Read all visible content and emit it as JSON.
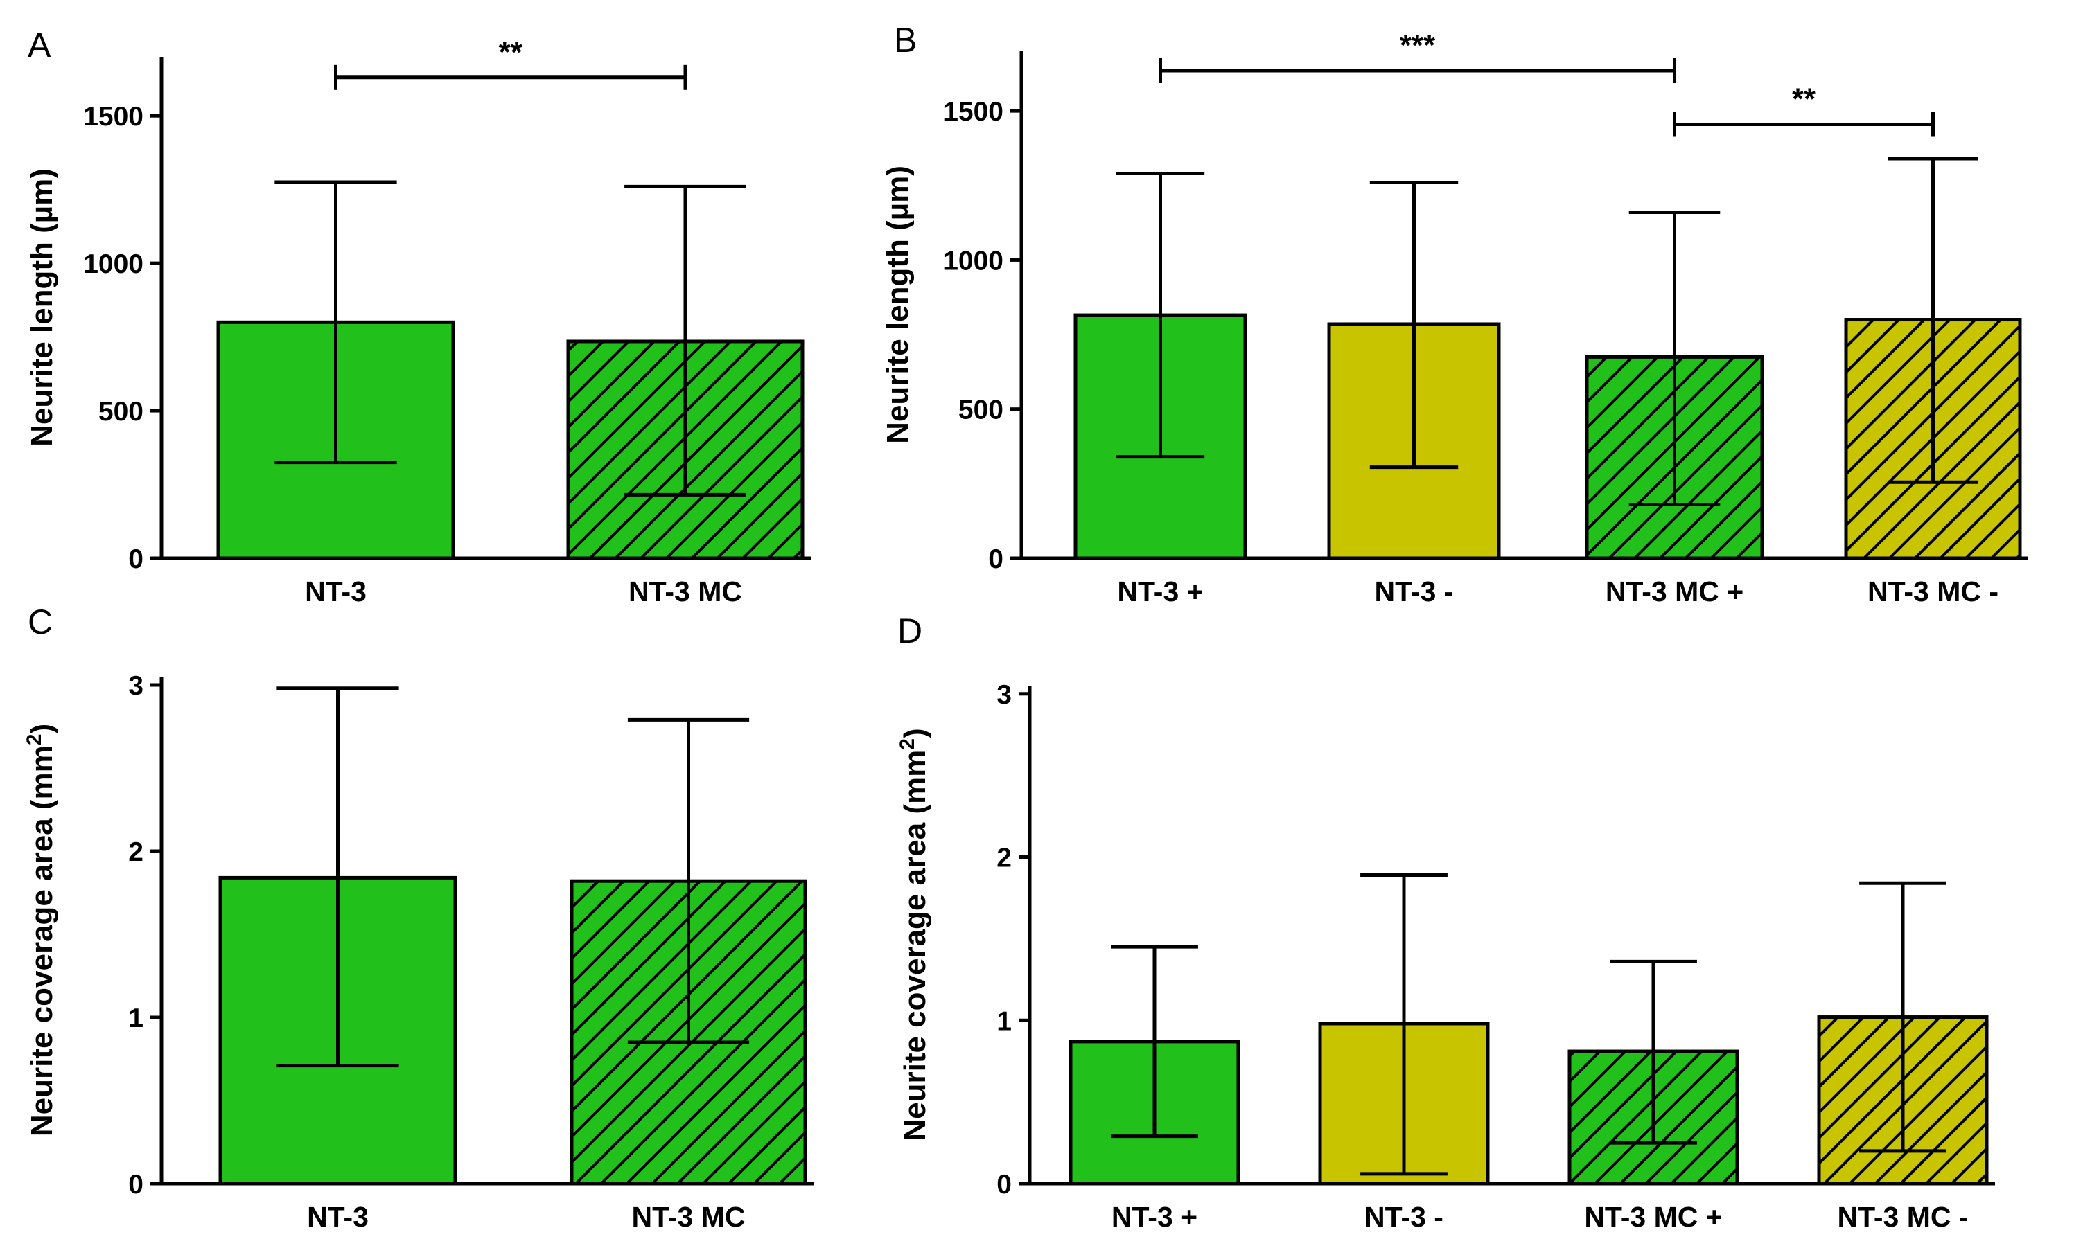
{
  "colors": {
    "green": "#22c01a",
    "olive": "#c9c400",
    "hatch": "#000000",
    "outline": "#000000"
  },
  "chart_data": [
    {
      "panel": "A",
      "type": "bar",
      "ylabel": "Neurite length (µm)",
      "ylim": [
        0,
        1700
      ],
      "yticks": [
        0,
        500,
        1000,
        1500
      ],
      "categories": [
        "NT-3",
        "NT-3 MC"
      ],
      "values": [
        800,
        735
      ],
      "error_upper": [
        1275,
        1260
      ],
      "error_lower": [
        325,
        215
      ],
      "fill": [
        "green",
        "green"
      ],
      "hatched": [
        false,
        true
      ],
      "significance": [
        {
          "from": 0,
          "to": 1,
          "label": "**",
          "level": 1630
        }
      ]
    },
    {
      "panel": "B",
      "type": "bar",
      "ylabel": "Neurite length (µm)",
      "ylim": [
        0,
        1700
      ],
      "yticks": [
        0,
        500,
        1000,
        1500
      ],
      "categories": [
        "NT-3 +",
        "NT-3 -",
        "NT-3 MC +",
        "NT-3 MC -"
      ],
      "values": [
        815,
        785,
        675,
        800
      ],
      "error_upper": [
        1290,
        1260,
        1160,
        1340
      ],
      "error_lower": [
        340,
        305,
        180,
        255
      ],
      "fill": [
        "green",
        "olive",
        "green",
        "olive"
      ],
      "hatched": [
        false,
        false,
        true,
        true
      ],
      "significance": [
        {
          "from": 0,
          "to": 2,
          "label": "***",
          "level": 1635
        },
        {
          "from": 2,
          "to": 3,
          "label": "**",
          "level": 1455
        }
      ]
    },
    {
      "panel": "C",
      "type": "bar",
      "ylabel": "Neurite coverage area (mm",
      "ylabel_sup": "2",
      "ylabel_suffix": ")",
      "ylim": [
        0,
        3.05
      ],
      "yticks": [
        0,
        1,
        2,
        3
      ],
      "categories": [
        "NT-3",
        "NT-3 MC"
      ],
      "values": [
        1.84,
        1.82
      ],
      "error_upper": [
        2.98,
        2.79
      ],
      "error_lower": [
        0.71,
        0.85
      ],
      "fill": [
        "green",
        "green"
      ],
      "hatched": [
        false,
        true
      ],
      "significance": []
    },
    {
      "panel": "D",
      "type": "bar",
      "ylabel": "Neurite coverage area (mm",
      "ylabel_sup": "2",
      "ylabel_suffix": ")",
      "ylim": [
        0,
        3.05
      ],
      "yticks": [
        0,
        1,
        2,
        3
      ],
      "categories": [
        "NT-3 +",
        "NT-3 -",
        "NT-3 MC +",
        "NT-3 MC -"
      ],
      "values": [
        0.87,
        0.98,
        0.81,
        1.02
      ],
      "error_upper": [
        1.45,
        1.89,
        1.36,
        1.84
      ],
      "error_lower": [
        0.29,
        0.06,
        0.25,
        0.2
      ],
      "fill": [
        "green",
        "olive",
        "green",
        "olive"
      ],
      "hatched": [
        false,
        false,
        true,
        true
      ],
      "significance": []
    }
  ]
}
